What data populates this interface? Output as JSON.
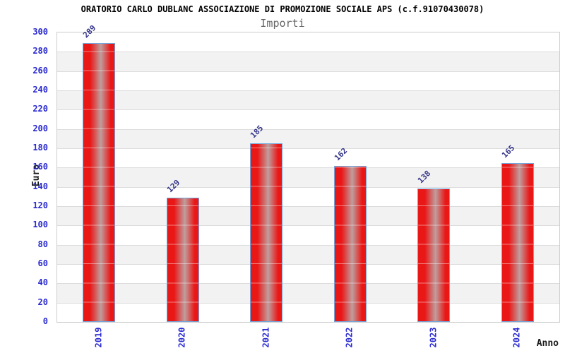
{
  "chart_data": {
    "type": "bar",
    "title": "ORATORIO CARLO DUBLANC ASSOCIAZIONE DI PROMOZIONE SOCIALE APS (c.f.91070430078)",
    "subtitle": "Importi",
    "xlabel": "Anno",
    "ylabel": "Euro",
    "categories": [
      "2019",
      "2020",
      "2021",
      "2022",
      "2023",
      "2024"
    ],
    "values": [
      289,
      129,
      185,
      162,
      138,
      165
    ],
    "ylim": [
      0,
      300
    ],
    "yticks": [
      0,
      20,
      40,
      60,
      80,
      100,
      120,
      140,
      160,
      180,
      200,
      220,
      240,
      260,
      280,
      300
    ],
    "grid": "horizontal",
    "legend": "none",
    "colors": {
      "bar_red": "#ea1717",
      "bar_highlight": "#bf9e9e",
      "bar_border": "#6fa8e0",
      "tick_label_blue": "#2a2ad0",
      "value_label_navy": "#333388",
      "band_gray": "#f2f2f2",
      "gridline_gray": "#dcdcdc",
      "plot_border_gray": "#cccccc",
      "title_black": "#000000",
      "subtitle_gray": "#666666"
    }
  }
}
